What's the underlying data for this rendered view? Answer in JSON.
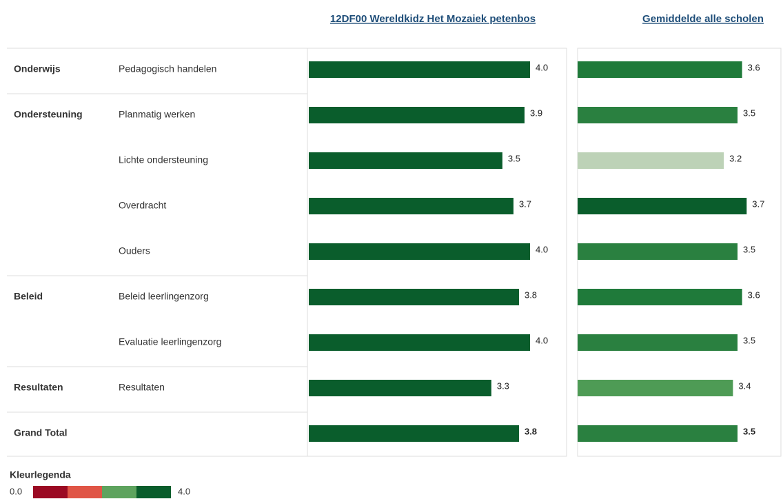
{
  "chart_data": {
    "type": "bar",
    "row_groups": [
      "Onderwijs",
      "Ondersteuning",
      null,
      null,
      null,
      "Beleid",
      null,
      "Resultaten",
      "Grand Total"
    ],
    "categories": [
      "Pedagogisch handelen",
      "Planmatig werken",
      "Lichte ondersteuning",
      "Overdracht",
      "Ouders",
      "Beleid leerlingenzorg",
      "Evaluatie leerlingenzorg",
      "Resultaten",
      null
    ],
    "series": [
      {
        "name": "12DF00 Wereldkidz Het Mozaiek petenbos",
        "values": [
          4.0,
          3.9,
          3.5,
          3.7,
          4.0,
          3.8,
          4.0,
          3.3,
          3.8
        ],
        "value_labels": [
          "4.0",
          "3.9",
          "3.5",
          "3.7",
          "4.0",
          "3.8",
          "4.0",
          "3.3",
          "3.8"
        ],
        "colors": [
          "#0a5d2c",
          "#0a5d2c",
          "#0a5d2c",
          "#0a5d2c",
          "#0a5d2c",
          "#0a5d2c",
          "#0a5d2c",
          "#0a5d2c",
          "#0a5d2c"
        ],
        "xlim": [
          0,
          4.66
        ]
      },
      {
        "name": "Gemiddelde alle scholen",
        "values": [
          3.6,
          3.5,
          3.2,
          3.7,
          3.5,
          3.6,
          3.5,
          3.4,
          3.5
        ],
        "value_labels": [
          "3.6",
          "3.5",
          "3.2",
          "3.7",
          "3.5",
          "3.6",
          "3.5",
          "3.4",
          "3.5"
        ],
        "colors": [
          "#1f7a3a",
          "#2a8040",
          "#bdd2b7",
          "#0a5d2c",
          "#2a8040",
          "#1f7a3a",
          "#2a8040",
          "#4e9b55",
          "#2a8040"
        ],
        "xlim": [
          0,
          4.45
        ]
      }
    ],
    "legend": {
      "title": "Kleurlegenda",
      "min_label": "0.0",
      "max_label": "4.0",
      "colors": [
        "#9b0a23",
        "#e05546",
        "#5ea35e",
        "#0a5d2c"
      ]
    }
  }
}
